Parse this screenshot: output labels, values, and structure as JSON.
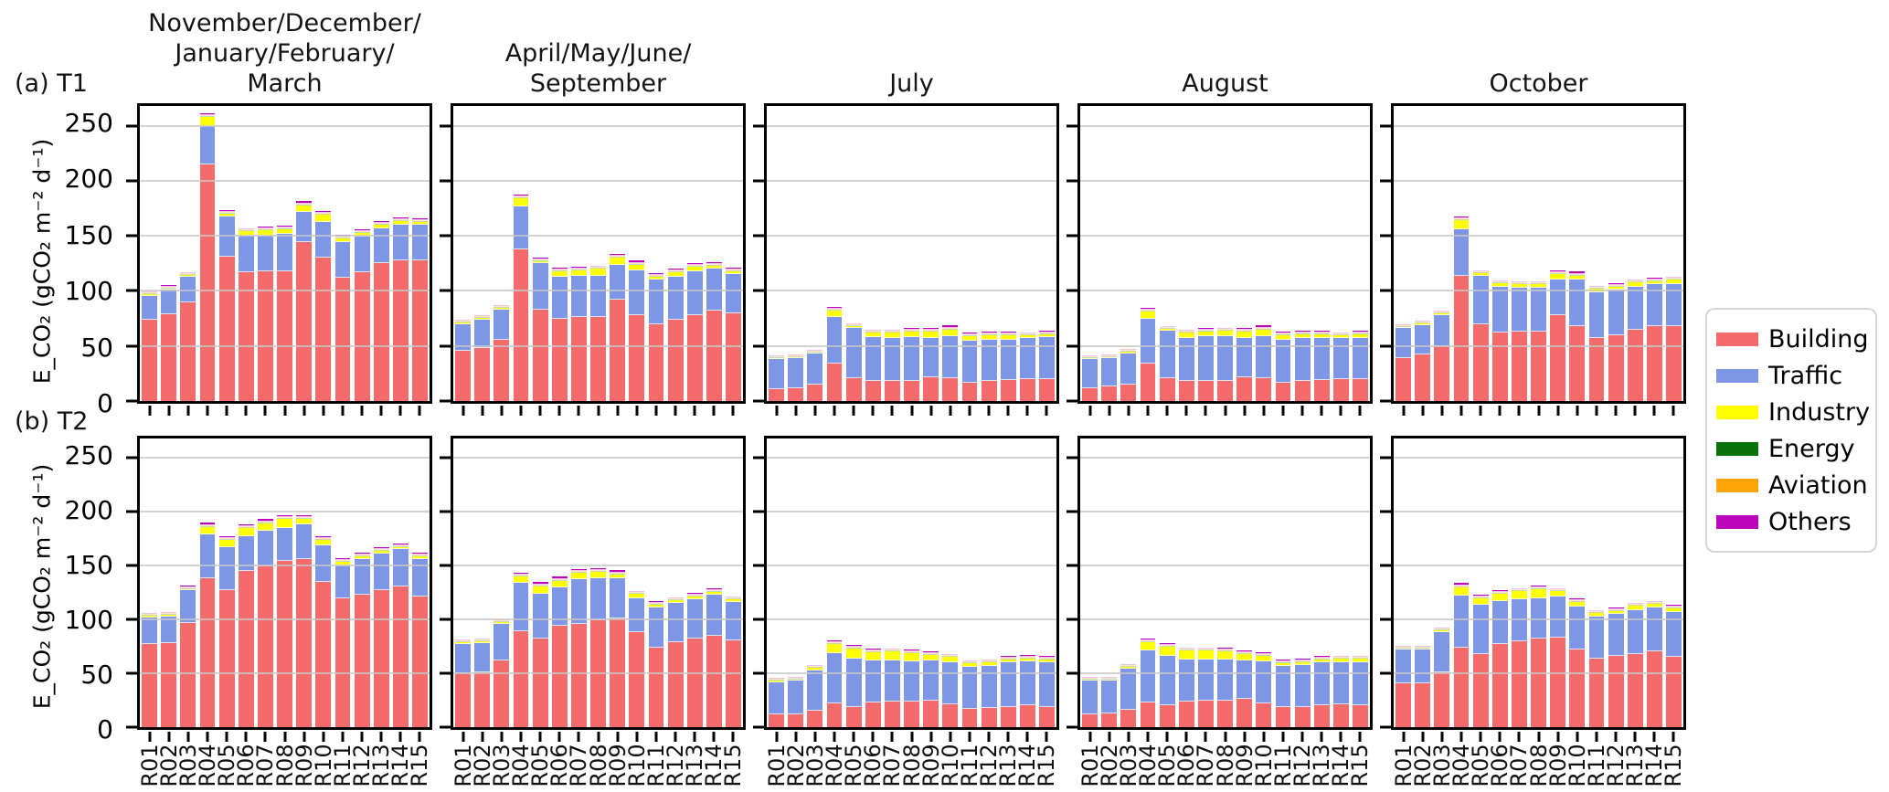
{
  "figure": {
    "row_labels": [
      "(a) T1",
      "(b) T2"
    ],
    "y_axis_label": "E_CO₂ (gCO₂ m⁻² d⁻¹)",
    "y_ticks": [
      0,
      50,
      100,
      150,
      200,
      250
    ],
    "ylim": [
      0,
      268
    ],
    "categories": [
      "R01",
      "R02",
      "R03",
      "R04",
      "R05",
      "R06",
      "R07",
      "R08",
      "R09",
      "R10",
      "R11",
      "R12",
      "R13",
      "R14",
      "R15"
    ],
    "series_order": [
      "Building",
      "Traffic",
      "Industry",
      "Energy",
      "Aviation",
      "Others"
    ],
    "colors": {
      "Building": "#f56a6a",
      "Traffic": "#7e96e6",
      "Industry": "#ffff00",
      "Energy": "#0a720a",
      "Aviation": "#ffa408",
      "Others": "#bb06bb"
    },
    "gridline_color": "#cccccc",
    "legend_position": "right"
  },
  "legend": {
    "entries": [
      {
        "label": "Building",
        "color": "#f56a6a"
      },
      {
        "label": "Traffic",
        "color": "#7e96e6"
      },
      {
        "label": "Industry",
        "color": "#ffff00"
      },
      {
        "label": "Energy",
        "color": "#0a720a"
      },
      {
        "label": "Aviation",
        "color": "#ffa408"
      },
      {
        "label": "Others",
        "color": "#bb06bb"
      }
    ]
  },
  "chart_data": [
    {
      "id": "t1-nov-mar",
      "type": "bar-stacked",
      "row": 0,
      "col": 0,
      "group": "T1",
      "title": "November/December/\nJanuary/February/\nMarch",
      "series": {
        "Building": [
          74,
          79,
          90,
          215,
          131,
          117,
          118,
          118,
          144,
          130,
          112,
          117,
          125,
          128,
          128
        ],
        "Traffic": [
          21.5,
          22,
          23,
          35,
          37,
          33,
          32,
          34,
          28,
          33,
          32,
          32,
          32,
          32,
          32
        ],
        "Industry": [
          1.2,
          1.5,
          1.5,
          8,
          2,
          4,
          5,
          4,
          6,
          6,
          4,
          4,
          3.5,
          3.5,
          3
        ],
        "Energy": 0.3,
        "Aviation": 0.6,
        "Others": [
          1,
          1,
          1,
          2,
          1.5,
          1.5,
          1.5,
          1.5,
          2,
          2,
          1.5,
          1.5,
          1.5,
          1.5,
          1.5
        ]
      }
    },
    {
      "id": "t1-apr-jun-sep",
      "type": "bar-stacked",
      "row": 0,
      "col": 1,
      "group": "T1",
      "title": "April/May/June/\nSeptember",
      "series": {
        "Building": [
          46,
          48,
          56,
          138,
          83,
          75,
          76,
          76,
          92,
          78,
          70,
          74,
          78,
          82,
          80
        ],
        "Traffic": [
          24,
          26,
          27,
          39,
          42,
          38,
          38,
          38,
          32,
          41,
          40,
          39,
          40,
          38,
          35
        ],
        "Industry": [
          1.5,
          1.5,
          1.5,
          7,
          2,
          5,
          5,
          6,
          6,
          5,
          3,
          4,
          4,
          3,
          3
        ],
        "Energy": 0.3,
        "Aviation": 0.6,
        "Others": [
          1,
          1,
          1,
          2,
          1.5,
          1.5,
          1.5,
          1.5,
          2,
          2,
          1.5,
          1.5,
          1.5,
          1.5,
          1.5
        ]
      }
    },
    {
      "id": "t1-july",
      "type": "bar-stacked",
      "row": 0,
      "col": 2,
      "group": "T1",
      "title": "July",
      "series": {
        "Building": [
          11,
          12,
          15,
          34,
          21,
          18,
          18,
          18,
          22,
          21,
          17,
          18,
          19,
          20,
          20
        ],
        "Traffic": [
          27,
          27,
          28,
          42,
          45,
          40,
          39,
          40,
          35,
          38,
          38,
          38,
          37,
          37,
          38
        ],
        "Industry": [
          1,
          1,
          1,
          6,
          2,
          4,
          5,
          5,
          6,
          6,
          4,
          4,
          4,
          2.5,
          3
        ],
        "Energy": 0.3,
        "Aviation": 0.6,
        "Others": [
          0.8,
          0.8,
          0.8,
          2,
          1.2,
          1.5,
          1.5,
          1.5,
          2,
          2,
          1.5,
          1.5,
          1.5,
          1.2,
          1.2
        ]
      }
    },
    {
      "id": "t1-august",
      "type": "bar-stacked",
      "row": 0,
      "col": 3,
      "group": "T1",
      "title": "August",
      "series": {
        "Building": [
          12,
          13,
          15,
          34,
          21,
          18,
          18,
          18,
          22,
          21,
          17,
          18,
          19,
          20,
          20
        ],
        "Traffic": [
          26,
          26,
          28,
          41,
          43,
          39,
          41,
          41,
          35,
          38,
          39,
          39,
          38,
          37,
          37
        ],
        "Industry": [
          1,
          1,
          1.5,
          6,
          1.5,
          5,
          4,
          4.5,
          6,
          6,
          4,
          4,
          4,
          2.5,
          4
        ],
        "Energy": 0.3,
        "Aviation": 0.6,
        "Others": [
          0.8,
          0.8,
          0.8,
          2,
          1.2,
          1.5,
          1.5,
          1.5,
          2,
          2,
          1.5,
          1.5,
          1.5,
          1.2,
          1.5
        ]
      }
    },
    {
      "id": "t1-october",
      "type": "bar-stacked",
      "row": 0,
      "col": 4,
      "group": "T1",
      "title": "October",
      "series": {
        "Building": [
          39,
          42,
          50,
          114,
          70,
          62,
          63,
          63,
          78,
          68,
          57,
          60,
          65,
          68,
          68
        ],
        "Traffic": [
          27,
          27,
          28,
          42,
          44,
          42,
          40,
          40,
          32,
          42,
          42,
          41,
          39,
          38,
          38
        ],
        "Industry": [
          1.2,
          1.2,
          1.5,
          8,
          2,
          3,
          3,
          3,
          5,
          4,
          3,
          3,
          3.5,
          3,
          4
        ],
        "Energy": 0.3,
        "Aviation": 0.6,
        "Others": [
          0.8,
          0.8,
          0.8,
          2,
          1.2,
          1.2,
          1.2,
          1.2,
          2,
          2,
          1.2,
          1.2,
          1.5,
          1.5,
          1.5
        ]
      }
    },
    {
      "id": "t2-nov-mar",
      "type": "bar-stacked",
      "row": 1,
      "col": 0,
      "group": "T2",
      "series": {
        "Building": [
          77,
          78,
          97,
          138,
          127,
          145,
          149,
          154,
          156,
          135,
          120,
          123,
          127,
          131,
          121
        ],
        "Traffic": [
          25,
          25,
          30,
          41,
          40,
          32,
          33,
          31,
          32,
          34,
          30,
          33,
          34,
          34,
          35
        ],
        "Industry": [
          1.2,
          1.5,
          1.5,
          7,
          6.5,
          8,
          7.5,
          8,
          5.5,
          4.5,
          3.5,
          2.5,
          2.5,
          2.5,
          3
        ],
        "Energy": 0.3,
        "Aviation": 0.6,
        "Others": [
          1,
          1,
          1,
          2,
          2,
          2,
          2,
          2,
          2,
          2,
          1.5,
          1.5,
          1.5,
          1.5,
          1.5
        ]
      }
    },
    {
      "id": "t2-apr-jun-sep",
      "type": "bar-stacked",
      "row": 1,
      "col": 1,
      "group": "T2",
      "series": {
        "Building": [
          50,
          51,
          62,
          89,
          82,
          94,
          96,
          99,
          101,
          88,
          74,
          79,
          82,
          85,
          81
        ],
        "Traffic": [
          27,
          27,
          34,
          45,
          42,
          36,
          41,
          39,
          37,
          32,
          37,
          36,
          37,
          38,
          35
        ],
        "Industry": [
          1.5,
          1.5,
          1.5,
          6,
          7,
          6,
          6,
          6,
          4,
          3.5,
          2.5,
          2.5,
          2.5,
          2.5,
          2.5
        ],
        "Energy": 0.3,
        "Aviation": 0.6,
        "Others": [
          1,
          1,
          1,
          2,
          2,
          2,
          2,
          2,
          2,
          1.5,
          1.5,
          1.5,
          1.5,
          1.5,
          1.5
        ]
      }
    },
    {
      "id": "t2-july",
      "type": "bar-stacked",
      "row": 1,
      "col": 2,
      "group": "T2",
      "series": {
        "Building": [
          12,
          12,
          15,
          22,
          19,
          23,
          24,
          24,
          25,
          21,
          17,
          18,
          19,
          20,
          19
        ],
        "Traffic": [
          30,
          31,
          38,
          47,
          45,
          39,
          38,
          37,
          37,
          39,
          39,
          39,
          41,
          41,
          41
        ],
        "Industry": [
          1,
          1,
          2,
          8,
          9,
          7.5,
          8,
          7.5,
          5,
          5,
          3,
          3,
          3,
          3,
          3
        ],
        "Energy": 0.3,
        "Aviation": 0.6,
        "Others": [
          0.8,
          0.8,
          1,
          2,
          1.5,
          1.5,
          1.5,
          1.5,
          1.5,
          1.5,
          1.2,
          1.2,
          1.2,
          1.2,
          1.2
        ]
      }
    },
    {
      "id": "t2-august",
      "type": "bar-stacked",
      "row": 1,
      "col": 3,
      "group": "T2",
      "series": {
        "Building": [
          12,
          13,
          16,
          23,
          20,
          24,
          25,
          25,
          26,
          22,
          19,
          19,
          20,
          21,
          20
        ],
        "Traffic": [
          31,
          30,
          38,
          48,
          46,
          39,
          38,
          38,
          36,
          39,
          38,
          38.5,
          40,
          39,
          40
        ],
        "Industry": [
          1,
          1,
          2,
          8,
          9,
          8,
          8,
          7.5,
          6,
          5,
          2.5,
          3,
          3,
          3.5,
          3.5
        ],
        "Energy": 0.3,
        "Aviation": 0.6,
        "Others": [
          0.8,
          0.8,
          1,
          2,
          1.5,
          1.5,
          1.5,
          1.5,
          1.5,
          1.5,
          1.2,
          1.2,
          1.2,
          1.2,
          1.2
        ]
      }
    },
    {
      "id": "t2-october",
      "type": "bar-stacked",
      "row": 1,
      "col": 4,
      "group": "T2",
      "series": {
        "Building": [
          41,
          41,
          51,
          74,
          68,
          77,
          80,
          82,
          83,
          72,
          64,
          66,
          68,
          70,
          65
        ],
        "Traffic": [
          31,
          31,
          37,
          48,
          46,
          40,
          39,
          38,
          38,
          40,
          39,
          39,
          41,
          41,
          42
        ],
        "Industry": [
          1,
          1,
          1.5,
          8,
          6,
          7,
          7,
          8,
          5,
          4,
          3,
          3,
          3.5,
          3.5,
          3.5
        ],
        "Energy": 0.3,
        "Aviation": 0.6,
        "Others": [
          0.8,
          0.8,
          1,
          2,
          1.5,
          1.5,
          1.5,
          1.5,
          1.5,
          1.5,
          1.2,
          1.2,
          1.2,
          1.2,
          1.2
        ]
      }
    }
  ]
}
